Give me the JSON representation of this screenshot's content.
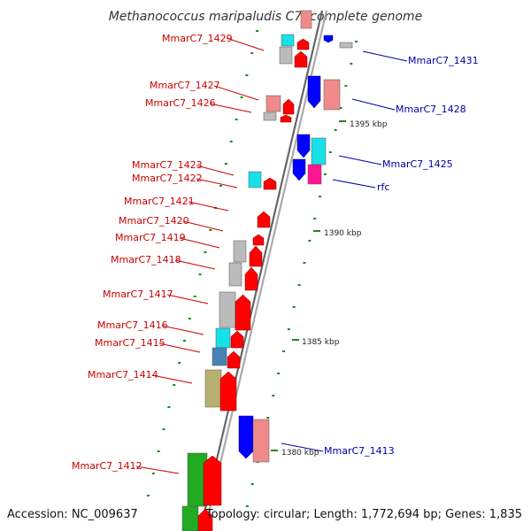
{
  "title": "Methanococcus maripaludis C7, complete genome",
  "footer": {
    "accession": "Accession: NC_009637",
    "topology": "Topology: circular; Length: 1,772,694 bp; Genes: 1,835"
  },
  "colors": {
    "left_label": "#cc0000",
    "right_label": "#0000aa",
    "backbone": "#888888",
    "tick": "#1a8a1a",
    "red_gene": "#ff0000",
    "blue_gene": "#0000ff",
    "pink_gene": "#f08a8a",
    "cyan_gene": "#18e0e8",
    "grey_gene": "#bbbbbb",
    "green_gene": "#22aa22",
    "olive_gene": "#b8b070",
    "steel_gene": "#4682b4",
    "magenta_gene": "#ff1493"
  },
  "scale_labels": [
    "1395 kbp",
    "1390 kbp",
    "1385 kbp",
    "1380 kbp"
  ],
  "left_labels": [
    "MmarC7_1429",
    "MmarC7_1427",
    "MmarC7_1426",
    "MmarC7_1423",
    "MmarC7_1422",
    "MmarC7_1421",
    "MmarC7_1420",
    "MmarC7_1419",
    "MmarC7_1418",
    "MmarC7_1417",
    "MmarC7_1416",
    "MmarC7_1415",
    "MmarC7_1414",
    "MmarC7_1412"
  ],
  "right_labels": [
    "MmarC7_1431",
    "MmarC7_1428",
    "MmarC7_1425",
    "rfc",
    "MmarC7_1413"
  ]
}
